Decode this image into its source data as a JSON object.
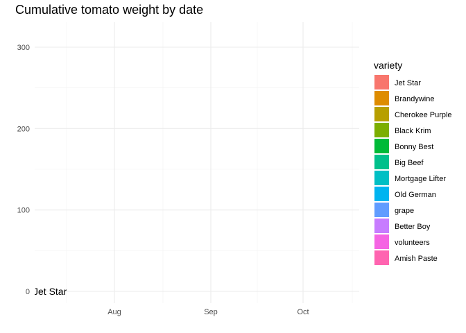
{
  "chart_data": {
    "type": "bar",
    "title": "Cumulative tomato weight by date",
    "xlabel": "",
    "ylabel": "",
    "x_ticks": [
      "Aug",
      "Sep",
      "Oct"
    ],
    "y_ticks": [
      0,
      100,
      200,
      300
    ],
    "ylim": [
      0,
      300
    ],
    "grid": true,
    "legend": {
      "title": "variety",
      "position": "right",
      "entries": [
        {
          "label": "Jet Star",
          "color": "#F8766D"
        },
        {
          "label": "Brandywine",
          "color": "#DE8C00"
        },
        {
          "label": "Cherokee Purple",
          "color": "#B79F00"
        },
        {
          "label": "Black Krim",
          "color": "#7CAE00"
        },
        {
          "label": "Bonny Best",
          "color": "#00BA38"
        },
        {
          "label": "Big Beef",
          "color": "#00C08B"
        },
        {
          "label": "Mortgage Lifter",
          "color": "#00BFC4"
        },
        {
          "label": "Old German",
          "color": "#00B4F0"
        },
        {
          "label": "grape",
          "color": "#619CFF"
        },
        {
          "label": "Better Boy",
          "color": "#C77CFF"
        },
        {
          "label": "volunteers",
          "color": "#F564E3"
        },
        {
          "label": "Amish Paste",
          "color": "#FF64B0"
        }
      ]
    },
    "annotations": [
      {
        "text": "Jet Star",
        "y": 0
      }
    ]
  }
}
